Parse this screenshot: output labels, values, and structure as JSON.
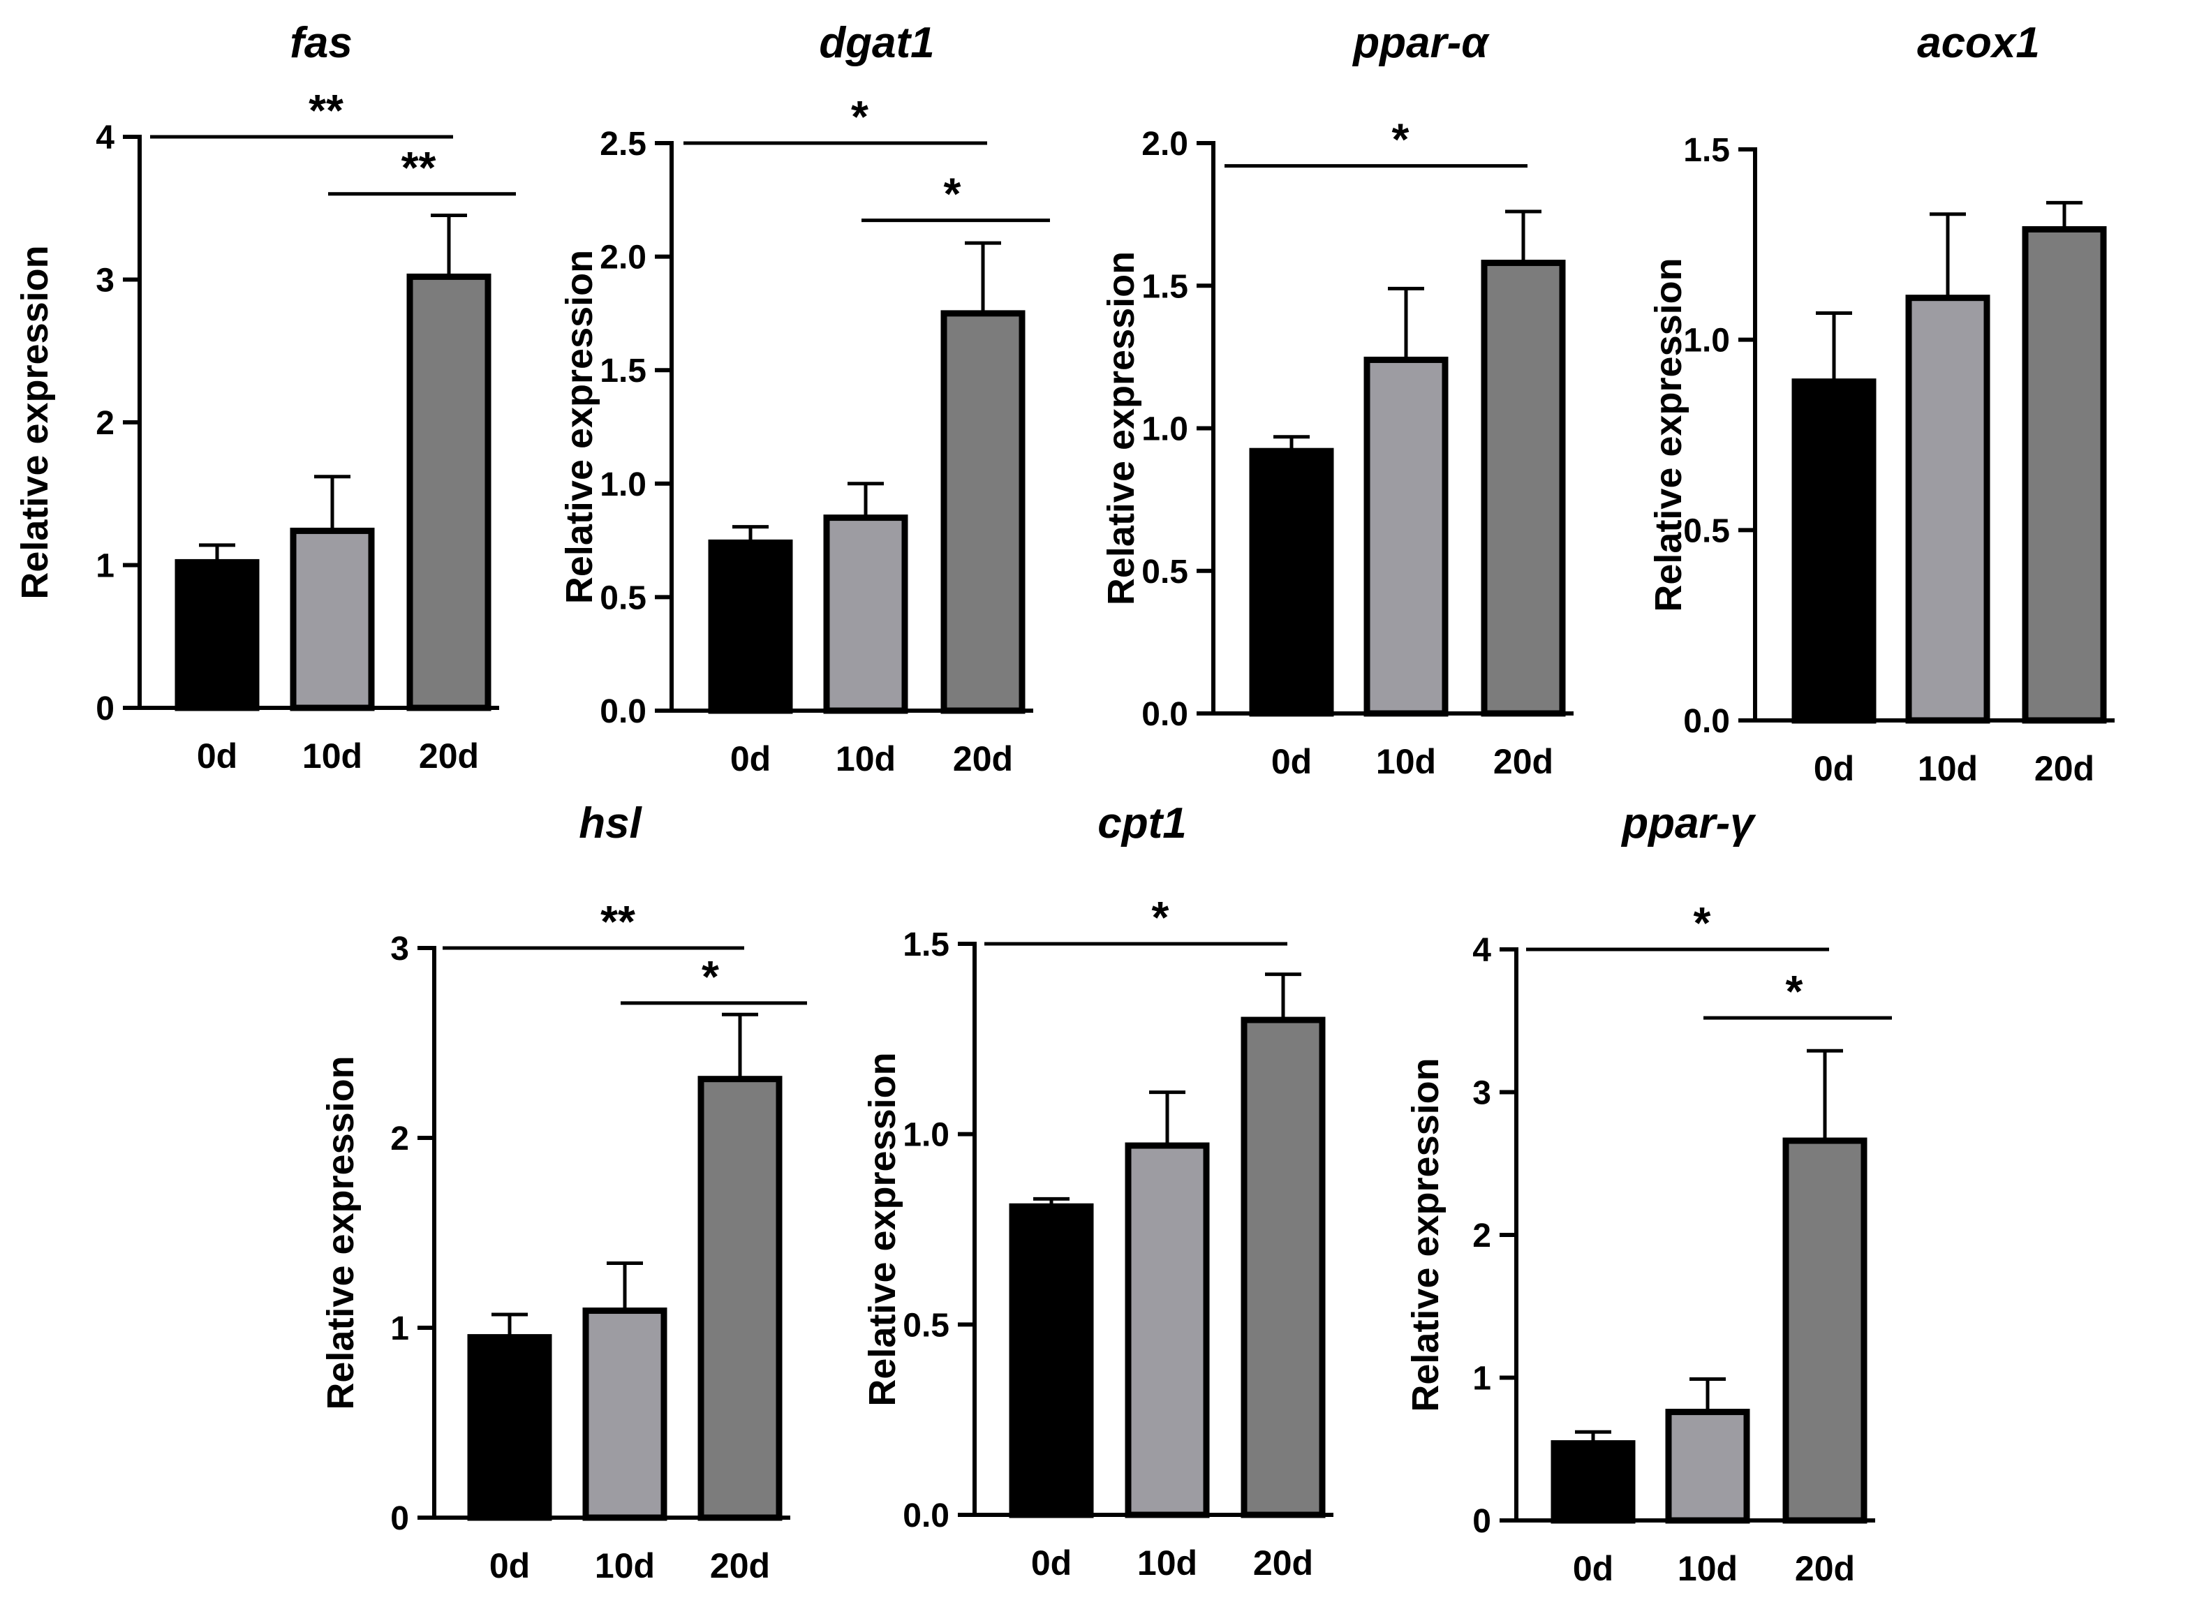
{
  "figure": {
    "description_colors": {
      "bar_0d": "#000000",
      "bar_10d": "#9d9ca2",
      "bar_20d": "#7c7c7c",
      "axis": "#000000"
    }
  },
  "chart_data": [
    {
      "type": "bar",
      "title": "fas",
      "ylabel": "Relative expression",
      "categories": [
        "0d",
        "10d",
        "20d"
      ],
      "values": [
        1.02,
        1.24,
        3.02
      ],
      "errors": [
        0.12,
        0.38,
        0.43
      ],
      "ylim": [
        0,
        4
      ],
      "yticks": [
        0,
        1,
        2,
        3,
        4
      ],
      "significance": [
        {
          "from": 0,
          "to": 2,
          "label": "**",
          "y": 4.0
        },
        {
          "from": 1,
          "to": 2,
          "label": "**",
          "y": 3.6
        }
      ]
    },
    {
      "type": "bar",
      "title": "dgat1",
      "ylabel": "Relative expression",
      "categories": [
        "0d",
        "10d",
        "20d"
      ],
      "values": [
        0.74,
        0.85,
        1.75
      ],
      "errors": [
        0.07,
        0.15,
        0.31
      ],
      "ylim": [
        0,
        2.5
      ],
      "yticks": [
        "0.0",
        "0.5",
        "1.0",
        "1.5",
        "2.0",
        "2.5"
      ],
      "significance": [
        {
          "from": 0,
          "to": 2,
          "label": "*",
          "y": 2.5
        },
        {
          "from": 1,
          "to": 2,
          "label": "*",
          "y": 2.16
        }
      ]
    },
    {
      "type": "bar",
      "title": "ppar-α",
      "ylabel": "Relative expression",
      "categories": [
        "0d",
        "10d",
        "20d"
      ],
      "values": [
        0.92,
        1.24,
        1.58
      ],
      "errors": [
        0.05,
        0.25,
        0.18
      ],
      "ylim": [
        0,
        2.0
      ],
      "yticks": [
        "0.0",
        "0.5",
        "1.0",
        "1.5",
        "2.0"
      ],
      "significance": [
        {
          "from": 0,
          "to": 2,
          "label": "*",
          "y": 1.92
        }
      ]
    },
    {
      "type": "bar",
      "title": "acox1",
      "ylabel": "Relative expression",
      "categories": [
        "0d",
        "10d",
        "20d"
      ],
      "values": [
        0.89,
        1.11,
        1.29
      ],
      "errors": [
        0.18,
        0.22,
        0.07
      ],
      "ylim": [
        0,
        1.5
      ],
      "yticks": [
        "0.0",
        "0.5",
        "1.0",
        "1.5"
      ],
      "significance": []
    },
    {
      "type": "bar",
      "title": "hsl",
      "ylabel": "Relative expression",
      "categories": [
        "0d",
        "10d",
        "20d"
      ],
      "values": [
        0.95,
        1.09,
        2.31
      ],
      "errors": [
        0.12,
        0.25,
        0.34
      ],
      "ylim": [
        0,
        3
      ],
      "yticks": [
        0,
        1,
        2,
        3
      ],
      "significance": [
        {
          "from": 0,
          "to": 2,
          "label": "**",
          "y": 3.0
        },
        {
          "from": 1,
          "to": 2,
          "label": "*",
          "y": 2.71
        }
      ]
    },
    {
      "type": "bar",
      "title": "cpt1",
      "ylabel": "Relative expression",
      "categories": [
        "0d",
        "10d",
        "20d"
      ],
      "values": [
        0.81,
        0.97,
        1.3
      ],
      "errors": [
        0.02,
        0.14,
        0.12
      ],
      "ylim": [
        0,
        1.5
      ],
      "yticks": [
        "0.0",
        "0.5",
        "1.0",
        "1.5"
      ],
      "significance": [
        {
          "from": 0,
          "to": 2,
          "label": "*",
          "y": 1.5
        }
      ]
    },
    {
      "type": "bar",
      "title": "ppar-γ",
      "ylabel": "Relative expression",
      "categories": [
        "0d",
        "10d",
        "20d"
      ],
      "values": [
        0.54,
        0.76,
        2.66
      ],
      "errors": [
        0.08,
        0.23,
        0.63
      ],
      "ylim": [
        0,
        4
      ],
      "yticks": [
        0,
        1,
        2,
        3,
        4
      ],
      "significance": [
        {
          "from": 0,
          "to": 2,
          "label": "*",
          "y": 4.0
        },
        {
          "from": 1,
          "to": 2,
          "label": "*",
          "y": 3.52
        }
      ]
    }
  ]
}
